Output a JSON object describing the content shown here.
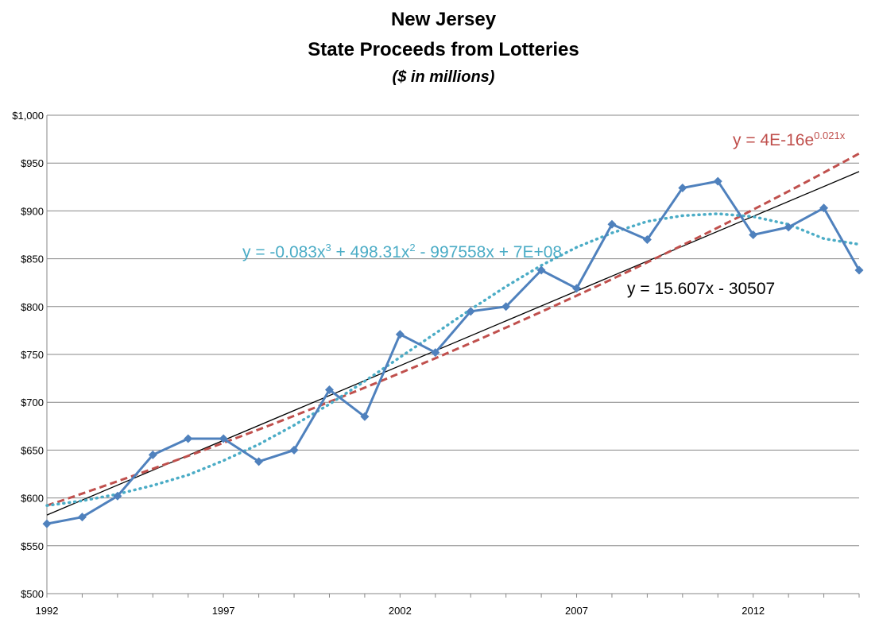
{
  "chart_data": {
    "type": "line",
    "title": [
      "New Jersey",
      "State Proceeds from Lotteries"
    ],
    "subtitle": "($ in millions)",
    "xlabel": "",
    "ylabel": "",
    "x": [
      1992,
      1993,
      1994,
      1995,
      1996,
      1997,
      1998,
      1999,
      2000,
      2001,
      2002,
      2003,
      2004,
      2005,
      2006,
      2007,
      2008,
      2009,
      2010,
      2011,
      2012,
      2013,
      2014,
      2015
    ],
    "xlim": [
      1992,
      2015
    ],
    "ylim": [
      500,
      1000
    ],
    "x_ticks": [
      1992,
      1997,
      2002,
      2007,
      2012
    ],
    "x_tick_labels": [
      "1992",
      "1997",
      "2002",
      "2007",
      "2012"
    ],
    "y_ticks": [
      500,
      550,
      600,
      650,
      700,
      750,
      800,
      850,
      900,
      950,
      1000
    ],
    "y_tick_labels": [
      "$500",
      "$550",
      "$600",
      "$650",
      "$700",
      "$750",
      "$800",
      "$850",
      "$900",
      "$950",
      "$1,000"
    ],
    "grid": true,
    "series": [
      {
        "color": "#4F81BD",
        "marker": "diamond",
        "values": [
          573,
          580,
          602,
          645,
          662,
          662,
          638,
          650,
          713,
          685,
          771,
          752,
          795,
          800,
          838,
          819,
          886,
          870,
          924,
          931,
          875,
          883,
          903,
          838
        ]
      }
    ],
    "trendlines": [
      {
        "kind": "linear",
        "color": "#000000",
        "style": "solid",
        "slope": 15.607,
        "intercept": -30507,
        "label": {
          "text": "y = 15.607x - 30507"
        }
      },
      {
        "kind": "exponential",
        "color": "#C0504D",
        "style": "dashed",
        "start_value": 592,
        "end_value": 960,
        "label": {
          "base": "y = 4E-16e",
          "exponent": "0.021x"
        }
      },
      {
        "kind": "polynomial-3",
        "color": "#4BACC6",
        "style": "dotted",
        "values": [
          592,
          597,
          604,
          613,
          624,
          639,
          656,
          676,
          698,
          722,
          747,
          772,
          797,
          821,
          843,
          862,
          877,
          889,
          895,
          897,
          894,
          886,
          871,
          865
        ],
        "label": {
          "parts": [
            "y = -0.083x",
            "3",
            " + 498.31x",
            "2",
            " - 997558x  + 7E+08"
          ]
        }
      }
    ]
  }
}
